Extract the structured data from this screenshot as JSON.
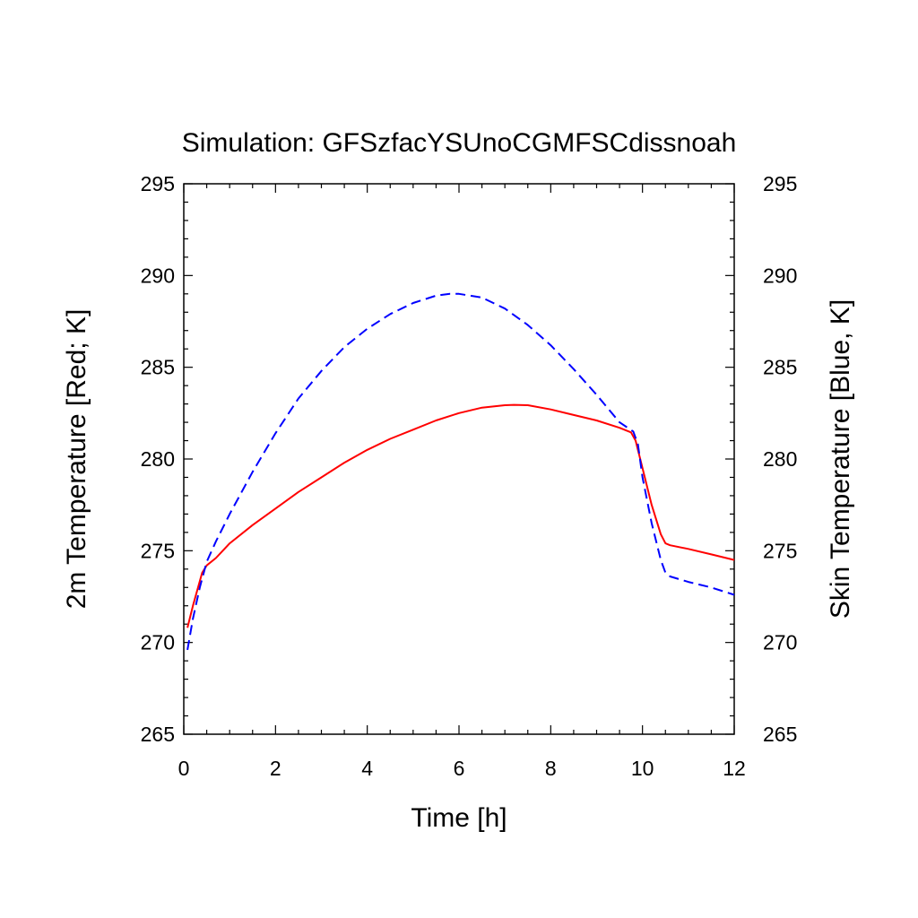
{
  "chart_data": {
    "type": "line",
    "title": "Simulation: GFSzfacYSUnoCGMFSCdissnoah",
    "xlabel": "Time [h]",
    "ylabel_left": "2m Temperature [Red; K]",
    "ylabel_right": "Skin Temperature [Blue, K]",
    "xlim": [
      0,
      12
    ],
    "ylim": [
      265,
      295
    ],
    "x_ticks": [
      0,
      2,
      4,
      6,
      8,
      10,
      12
    ],
    "y_ticks": [
      265,
      270,
      275,
      280,
      285,
      290,
      295
    ],
    "grid": false,
    "series": [
      {
        "color": "#ff0000",
        "dash": "solid",
        "axis": "left",
        "x": [
          0.08,
          0.2,
          0.4,
          0.5,
          0.7,
          1.0,
          1.5,
          2.0,
          2.5,
          3.0,
          3.5,
          4.0,
          4.5,
          5.0,
          5.5,
          6.0,
          6.5,
          7.0,
          7.2,
          7.5,
          8.0,
          8.5,
          9.0,
          9.5,
          9.75,
          9.85,
          10.0,
          10.2,
          10.4,
          10.5,
          10.6,
          11.0,
          11.5,
          12.0
        ],
        "y": [
          270.8,
          272.0,
          273.8,
          274.2,
          274.6,
          275.4,
          276.4,
          277.3,
          278.2,
          279.0,
          279.8,
          280.5,
          281.1,
          281.6,
          282.1,
          282.5,
          282.8,
          282.93,
          282.95,
          282.93,
          282.7,
          282.4,
          282.1,
          281.7,
          281.45,
          281.0,
          279.5,
          277.5,
          275.9,
          275.4,
          275.3,
          275.1,
          274.8,
          274.5
        ]
      },
      {
        "color": "#0000ff",
        "dash": "dashed",
        "axis": "right",
        "x": [
          0.08,
          0.2,
          0.35,
          0.5,
          0.7,
          1.0,
          1.5,
          2.0,
          2.5,
          3.0,
          3.5,
          4.0,
          4.5,
          5.0,
          5.5,
          5.8,
          6.0,
          6.5,
          7.0,
          7.5,
          8.0,
          8.5,
          9.0,
          9.5,
          9.8,
          9.9,
          10.0,
          10.2,
          10.4,
          10.5,
          10.6,
          11.0,
          11.5,
          12.0
        ],
        "y": [
          269.6,
          271.3,
          273.0,
          274.4,
          275.5,
          277.0,
          279.3,
          281.4,
          283.3,
          284.8,
          286.1,
          287.1,
          287.9,
          288.5,
          288.9,
          289.0,
          289.0,
          288.8,
          288.2,
          287.3,
          286.2,
          284.9,
          283.5,
          282.0,
          281.5,
          280.8,
          279.0,
          276.5,
          274.5,
          273.8,
          273.6,
          273.3,
          273.0,
          272.6
        ]
      }
    ]
  }
}
